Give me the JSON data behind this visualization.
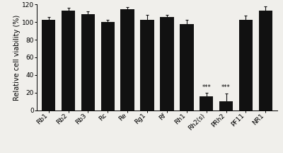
{
  "categories": [
    "Rb1",
    "Rb2",
    "Rb3",
    "Rc",
    "Re",
    "Rg1",
    "Rf",
    "Rh1",
    "Rh2(s)",
    "PRh2",
    "PF11",
    "NR1"
  ],
  "values": [
    103,
    113,
    109,
    100,
    115,
    103,
    106,
    98,
    16,
    10,
    103,
    113
  ],
  "errors": [
    2.5,
    3.5,
    3.5,
    3.0,
    2.0,
    5.0,
    2.0,
    5.0,
    3.5,
    9.0,
    4.5,
    5.0
  ],
  "bar_color": "#111111",
  "error_color": "#111111",
  "ylabel": "Relative cell viability (%)",
  "ylim": [
    0,
    120
  ],
  "yticks": [
    0,
    20,
    40,
    60,
    80,
    100,
    120
  ],
  "significance": [
    8,
    9
  ],
  "sig_label": "***",
  "background_color": "#f0efeb",
  "ylabel_fontsize": 7,
  "tick_fontsize": 6.5,
  "sig_fontsize": 6
}
